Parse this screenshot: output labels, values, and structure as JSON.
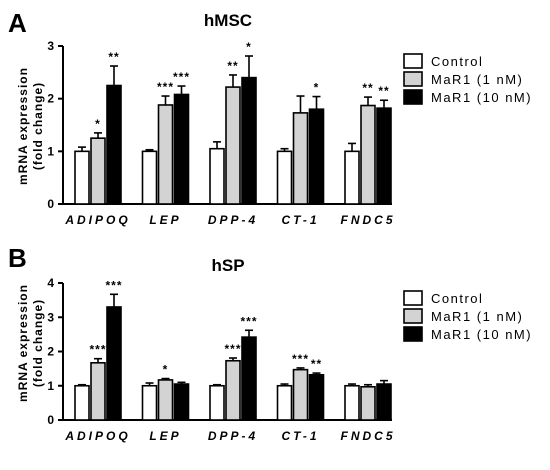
{
  "figure": {
    "panels": [
      {
        "letter": "A",
        "title": "hMSC",
        "ylabel_line1": "mRNA expression",
        "ylabel_line2": "(fold change)"
      },
      {
        "letter": "B",
        "title": "hSP",
        "ylabel_line1": "mRNA expression",
        "ylabel_line2": "(fold change)"
      }
    ],
    "colors": {
      "control": "#ffffff",
      "mar1_1nm": "#d3d3d3",
      "mar1_10nm": "#000000",
      "stroke": "#000000"
    }
  },
  "chart_data": [
    {
      "type": "bar",
      "panel": "A",
      "title": "hMSC",
      "ylabel": "mRNA expression (fold change)",
      "ylim": [
        0,
        3
      ],
      "yticks": [
        0,
        1,
        2,
        3
      ],
      "categories": [
        "ADIPOQ",
        "LEP",
        "DPP-4",
        "CT-1",
        "FNDC5"
      ],
      "series": [
        {
          "name": "Control",
          "values": [
            1.0,
            1.0,
            1.05,
            1.0,
            1.0
          ],
          "errors": [
            0.08,
            0.03,
            0.13,
            0.05,
            0.15
          ]
        },
        {
          "name": "MaR1 (1 nM)",
          "values": [
            1.25,
            1.88,
            2.22,
            1.73,
            1.87
          ],
          "errors": [
            0.1,
            0.17,
            0.23,
            0.32,
            0.16
          ]
        },
        {
          "name": "MaR1 (10 nM)",
          "values": [
            2.25,
            2.08,
            2.4,
            1.8,
            1.82
          ],
          "errors": [
            0.37,
            0.16,
            0.41,
            0.24,
            0.15
          ]
        }
      ],
      "significance": [
        [
          "",
          "*",
          "**"
        ],
        [
          "",
          "***",
          "***"
        ],
        [
          "",
          "**",
          "*"
        ],
        [
          "",
          "",
          "*"
        ],
        [
          "",
          "**",
          "**"
        ]
      ],
      "legend": "right",
      "grid": false
    },
    {
      "type": "bar",
      "panel": "B",
      "title": "hSP",
      "ylabel": "mRNA expression (fold change)",
      "ylim": [
        0,
        4
      ],
      "yticks": [
        0,
        1,
        2,
        3,
        4
      ],
      "categories": [
        "ADIPOQ",
        "LEP",
        "DPP-4",
        "CT-1",
        "FNDC5"
      ],
      "series": [
        {
          "name": "Control",
          "values": [
            1.0,
            1.0,
            1.0,
            1.0,
            1.0
          ],
          "errors": [
            0.03,
            0.08,
            0.03,
            0.05,
            0.05
          ]
        },
        {
          "name": "MaR1 (1 nM)",
          "values": [
            1.67,
            1.17,
            1.73,
            1.47,
            0.97
          ],
          "errors": [
            0.12,
            0.04,
            0.08,
            0.05,
            0.06
          ]
        },
        {
          "name": "MaR1 (10 nM)",
          "values": [
            3.3,
            1.05,
            2.42,
            1.32,
            1.05
          ],
          "errors": [
            0.37,
            0.05,
            0.2,
            0.05,
            0.1
          ]
        }
      ],
      "significance": [
        [
          "",
          "***",
          "***"
        ],
        [
          "",
          "*",
          ""
        ],
        [
          "",
          "***",
          "***"
        ],
        [
          "",
          "***",
          "**"
        ],
        [
          "",
          "",
          ""
        ]
      ],
      "legend": "right",
      "grid": false
    }
  ]
}
